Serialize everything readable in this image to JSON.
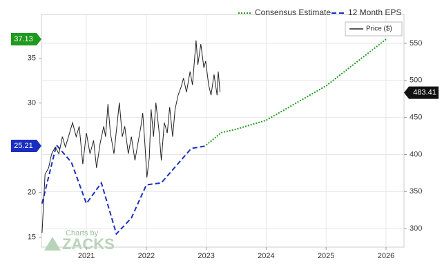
{
  "chart_data": {
    "type": "line",
    "xlim": [
      2020.25,
      2026.3
    ],
    "xticks": [
      2021,
      2022,
      2023,
      2024,
      2025,
      2026
    ],
    "ylim": [
      13.9,
      39.9
    ],
    "yticks": [
      15,
      20,
      30,
      35
    ],
    "y2lim": [
      275,
      589
    ],
    "y2ticks": [
      300,
      350,
      400,
      450,
      500,
      550
    ],
    "grid": true,
    "series": [
      {
        "name": "Consensus Estimate",
        "color": "#1f9a1f",
        "style": "dotted",
        "axis": "y",
        "x": [
          2023.0,
          2023.25,
          2023.5,
          2024.0,
          2025.0,
          2026.0
        ],
        "values": [
          25.31,
          26.69,
          27.08,
          28.08,
          31.92,
          37.13
        ]
      },
      {
        "name": "12 Month EPS",
        "color": "#1a2fc0",
        "style": "dashed",
        "axis": "y",
        "x": [
          2020.26,
          2020.5,
          2020.75,
          2021.0,
          2021.25,
          2021.5,
          2021.75,
          2022.0,
          2022.25,
          2022.75,
          2023.0
        ],
        "values": [
          18.77,
          25.31,
          23.38,
          18.77,
          21.08,
          15.38,
          17.15,
          20.85,
          21.08,
          24.92,
          25.21
        ]
      },
      {
        "name": "Price ($)",
        "color": "#222222",
        "style": "solid",
        "axis": "y2",
        "x": [
          2020.26,
          2020.31,
          2020.37,
          2020.42,
          2020.48,
          2020.54,
          2020.6,
          2020.65,
          2020.77,
          2020.83,
          2020.88,
          2020.94,
          2021.0,
          2021.06,
          2021.12,
          2021.17,
          2021.23,
          2021.29,
          2021.32,
          2021.36,
          2021.4,
          2021.46,
          2021.52,
          2021.55,
          2021.6,
          2021.64,
          2021.7,
          2021.75,
          2021.81,
          2021.86,
          2021.91,
          2021.94,
          2021.98,
          2022.01,
          2022.05,
          2022.08,
          2022.12,
          2022.16,
          2022.21,
          2022.25,
          2022.3,
          2022.35,
          2022.39,
          2022.44,
          2022.48,
          2022.53,
          2022.58,
          2022.62,
          2022.67,
          2022.73,
          2022.77,
          2022.83,
          2022.86,
          2022.91,
          2022.96,
          2022.99,
          2023.04,
          2023.08,
          2023.13,
          2023.18,
          2023.2,
          2023.23
        ],
        "values": [
          294,
          373,
          382,
          401,
          410,
          401,
          424,
          410,
          443,
          424,
          438,
          387,
          429,
          401,
          419,
          382,
          415,
          438,
          424,
          468,
          429,
          401,
          447,
          470,
          424,
          438,
          401,
          424,
          392,
          415,
          438,
          456,
          410,
          369,
          396,
          461,
          424,
          470,
          433,
          392,
          443,
          429,
          464,
          424,
          461,
          480,
          491,
          503,
          484,
          512,
          494,
          554,
          521,
          549,
          517,
          526,
          494,
          480,
          508,
          480,
          512,
          484
        ]
      }
    ],
    "badges": [
      {
        "value": 37.13,
        "axis": "y",
        "color": "#1f9a1f"
      },
      {
        "value": 25.21,
        "axis": "y",
        "color": "#1a2fc0"
      },
      {
        "value": 483.41,
        "axis": "y2",
        "color": "#111111"
      }
    ],
    "watermark": {
      "line1": "Charts by",
      "line2": "ZACKS"
    }
  }
}
